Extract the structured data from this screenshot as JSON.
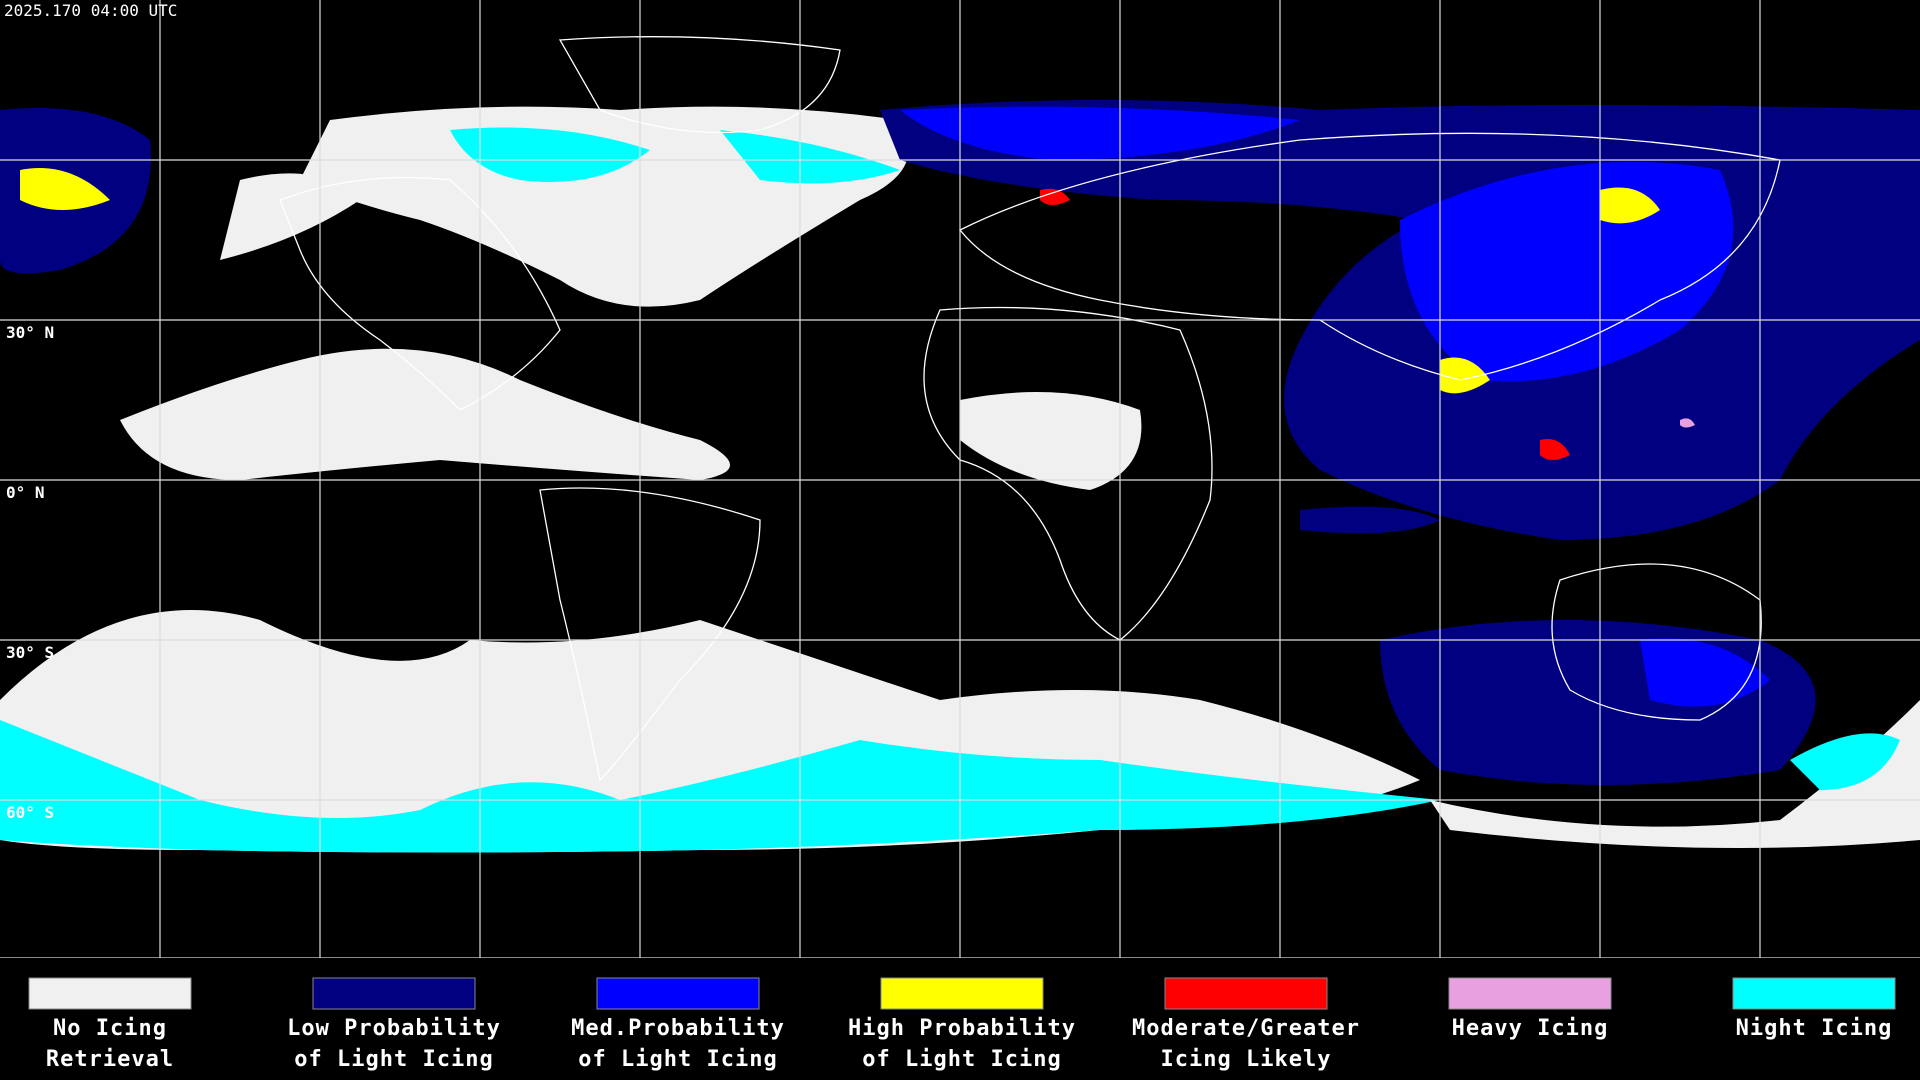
{
  "map": {
    "timestamp": "2025.170 04:00 UTC",
    "latitude_labels": [
      "30° N",
      "0° N",
      "30° S",
      "60° S"
    ],
    "legend": [
      {
        "label": [
          "No Icing",
          "Retrieval"
        ],
        "color": "#f0f0f0"
      },
      {
        "label": [
          "Low Probability",
          "of Light Icing"
        ],
        "color": "#000080"
      },
      {
        "label": [
          "Med.Probability",
          "of Light Icing"
        ],
        "color": "#0000ff"
      },
      {
        "label": [
          "High Probability",
          "of Light Icing"
        ],
        "color": "#ffff00"
      },
      {
        "label": [
          "Moderate/Greater",
          "Icing Likely"
        ],
        "color": "#ff0000"
      },
      {
        "label": [
          "Heavy Icing"
        ],
        "color": "#e8a0e0"
      },
      {
        "label": [
          "Night Icing"
        ],
        "color": "#00ffff"
      }
    ]
  }
}
